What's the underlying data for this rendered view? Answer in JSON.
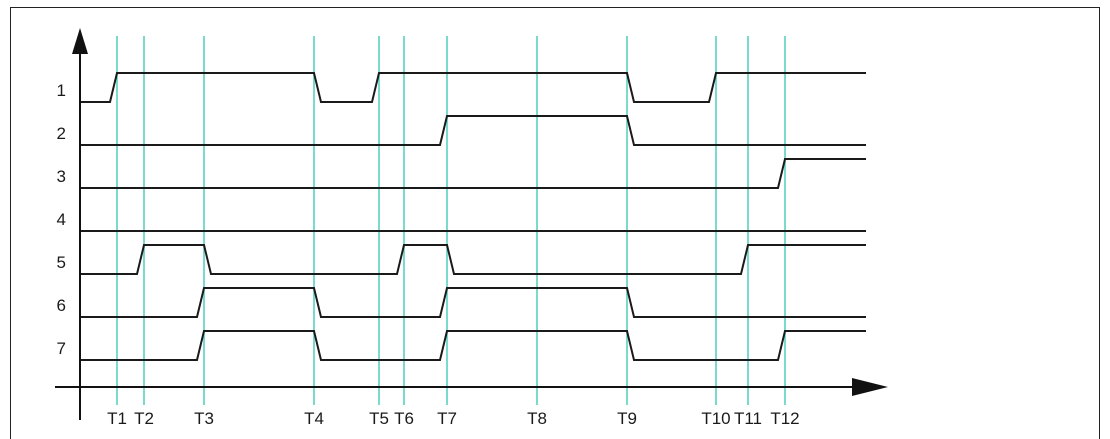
{
  "signals": [
    {
      "label": "1",
      "levels": [
        [
          0,
          0
        ],
        [
          1,
          1
        ],
        [
          4,
          0
        ],
        [
          5,
          1
        ],
        [
          9,
          0
        ],
        [
          10,
          1
        ]
      ]
    },
    {
      "label": "2",
      "levels": [
        [
          0,
          0
        ],
        [
          7,
          1
        ],
        [
          9,
          0
        ]
      ]
    },
    {
      "label": "3",
      "levels": [
        [
          0,
          0
        ],
        [
          12,
          1
        ]
      ]
    },
    {
      "label": "4",
      "levels": [
        [
          0,
          0
        ]
      ]
    },
    {
      "label": "5",
      "levels": [
        [
          0,
          0
        ],
        [
          2,
          1
        ],
        [
          3,
          0
        ],
        [
          6,
          1
        ],
        [
          7,
          0
        ],
        [
          11,
          1
        ]
      ]
    },
    {
      "label": "6",
      "levels": [
        [
          0,
          0
        ],
        [
          3,
          1
        ],
        [
          4,
          0
        ],
        [
          7,
          1
        ],
        [
          9,
          0
        ]
      ]
    },
    {
      "label": "7",
      "levels": [
        [
          0,
          0
        ],
        [
          3,
          1
        ],
        [
          4,
          0
        ],
        [
          7,
          1
        ],
        [
          9,
          0
        ],
        [
          12,
          1
        ]
      ]
    }
  ],
  "markers": [
    "T1",
    "T2",
    "T3",
    "T4",
    "T5",
    "T6",
    "T7",
    "T8",
    "T9",
    "T10",
    "T11",
    "T12"
  ],
  "colors": {
    "marker": "#5bd0c0",
    "signal": "#1a1a1a"
  }
}
